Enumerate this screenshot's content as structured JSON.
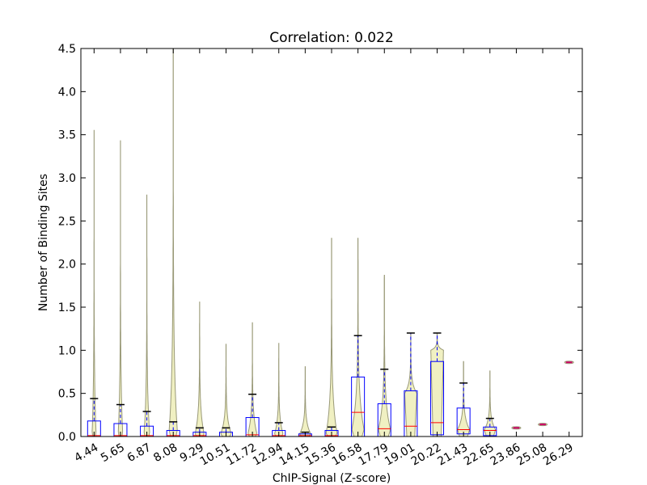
{
  "chart_data": {
    "type": "violin",
    "title": "Correlation: 0.022",
    "xlabel": "ChIP-Signal (Z-score)",
    "ylabel": "Number of Binding Sites",
    "ylim": [
      0,
      4.5
    ],
    "yticks": [
      "0.0",
      "0.5",
      "1.0",
      "1.5",
      "2.0",
      "2.5",
      "3.0",
      "3.5",
      "4.0",
      "4.5"
    ],
    "categories": [
      "4.44",
      "5.65",
      "6.87",
      "8.08",
      "9.29",
      "10.51",
      "11.72",
      "12.94",
      "14.15",
      "15.36",
      "16.58",
      "17.79",
      "19.01",
      "20.22",
      "21.43",
      "22.65",
      "23.86",
      "25.08",
      "26.29"
    ],
    "grid": false,
    "colors": {
      "violin_fill": "#eeeebb",
      "violin_edge": "#999977",
      "box": "#0000ff",
      "median": "#ff0000",
      "whisker": "#0000ff",
      "cap": "#000000",
      "point": "#cc0066"
    },
    "groups": [
      {
        "max": 3.55,
        "q1": 0.0,
        "median": 0.01,
        "q3": 0.18,
        "whisker_high": 0.44,
        "width": 0.16,
        "peak_y": 0.0
      },
      {
        "max": 3.43,
        "q1": 0.0,
        "median": 0.01,
        "q3": 0.15,
        "whisker_high": 0.37,
        "width": 0.18,
        "peak_y": 0.0
      },
      {
        "max": 2.8,
        "q1": 0.0,
        "median": 0.01,
        "q3": 0.12,
        "whisker_high": 0.29,
        "width": 0.22,
        "peak_y": 0.02
      },
      {
        "max": 4.5,
        "q1": 0.0,
        "median": 0.01,
        "q3": 0.07,
        "whisker_high": 0.17,
        "width": 0.32,
        "peak_y": 0.03
      },
      {
        "max": 1.56,
        "q1": 0.0,
        "median": 0.01,
        "q3": 0.05,
        "whisker_high": 0.1,
        "width": 0.34,
        "peak_y": 0.03
      },
      {
        "max": 1.07,
        "q1": 0.0,
        "median": 0.0,
        "q3": 0.05,
        "whisker_high": 0.1,
        "width": 0.4,
        "peak_y": 0.03
      },
      {
        "max": 1.32,
        "q1": 0.0,
        "median": 0.02,
        "q3": 0.22,
        "whisker_high": 0.49,
        "width": 0.34,
        "peak_y": 0.03
      },
      {
        "max": 1.08,
        "q1": 0.0,
        "median": 0.01,
        "q3": 0.07,
        "whisker_high": 0.16,
        "width": 0.32,
        "peak_y": 0.03
      },
      {
        "max": 0.81,
        "q1": 0.0,
        "median": 0.01,
        "q3": 0.03,
        "whisker_high": 0.05,
        "width": 0.42,
        "peak_y": 0.03
      },
      {
        "max": 2.3,
        "q1": 0.0,
        "median": 0.01,
        "q3": 0.07,
        "whisker_high": 0.11,
        "width": 0.42,
        "peak_y": 0.03
      },
      {
        "max": 2.3,
        "q1": 0.0,
        "median": 0.28,
        "q3": 0.69,
        "whisker_high": 1.17,
        "width": 0.46,
        "peak_y": 0.08
      },
      {
        "max": 1.87,
        "q1": 0.0,
        "median": 0.09,
        "q3": 0.38,
        "whisker_high": 0.78,
        "width": 0.46,
        "peak_y": 0.08
      },
      {
        "max": 1.2,
        "q1": 0.0,
        "median": 0.12,
        "q3": 0.53,
        "whisker_high": 1.2,
        "width": 0.46,
        "peak_y": 0.5
      },
      {
        "max": 1.2,
        "q1": 0.02,
        "median": 0.16,
        "q3": 0.87,
        "whisker_high": 1.2,
        "width": 0.48,
        "peak_y": 1.0
      },
      {
        "max": 0.87,
        "q1": 0.03,
        "median": 0.08,
        "q3": 0.33,
        "whisker_high": 0.62,
        "width": 0.46,
        "peak_y": 0.08
      },
      {
        "max": 0.76,
        "q1": 0.01,
        "median": 0.07,
        "q3": 0.11,
        "whisker_high": 0.21,
        "width": 0.42,
        "peak_y": 0.08
      },
      {
        "max": 0.1,
        "q1": 0.1,
        "median": 0.1,
        "q3": 0.1,
        "whisker_high": 0.1,
        "width": 0.34,
        "peak_y": 0.1,
        "single": true
      },
      {
        "max": 0.14,
        "q1": 0.14,
        "median": 0.14,
        "q3": 0.14,
        "whisker_high": 0.14,
        "width": 0.34,
        "peak_y": 0.14,
        "single": true
      },
      {
        "max": 0.86,
        "q1": 0.86,
        "median": 0.86,
        "q3": 0.86,
        "whisker_high": 0.86,
        "width": 0.34,
        "peak_y": 0.86,
        "single": true
      }
    ]
  }
}
